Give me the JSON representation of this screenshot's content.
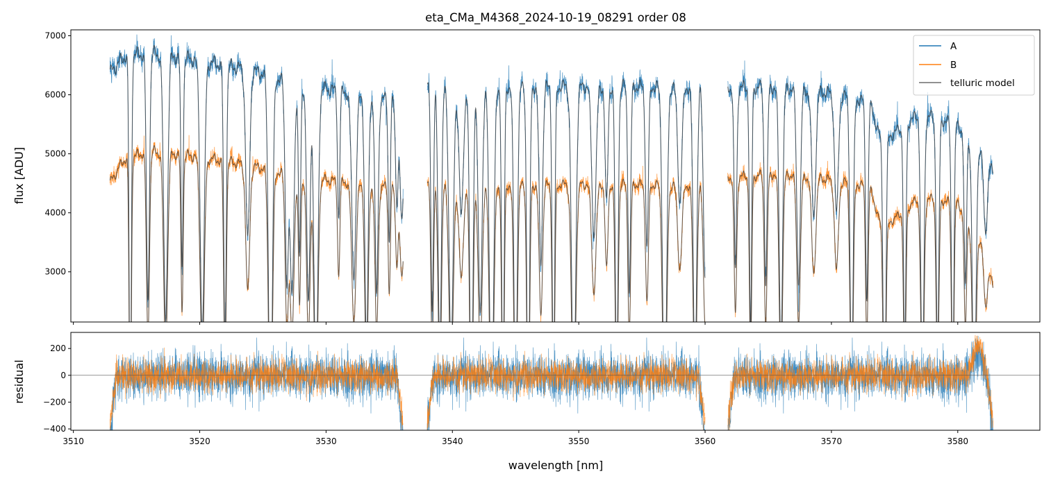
{
  "chart_data": [
    {
      "type": "line",
      "title": "eta_CMa_M4368_2024-10-19_08291  order 08",
      "xlabel": "",
      "ylabel": "flux [ADU]",
      "xlim": [
        3509.8,
        3586.5
      ],
      "ylim": [
        2150,
        7100
      ],
      "yticks": [
        "3000",
        "4000",
        "5000",
        "6000",
        "7000"
      ],
      "xticks_minor_only": [
        3510,
        3520,
        3530,
        3540,
        3550,
        3560,
        3570,
        3580
      ],
      "grid": false,
      "legend": {
        "placement": "top-right",
        "entries": [
          "A",
          "B",
          "telluric model"
        ]
      },
      "segments": [
        [
          3512.9,
          3536.1
        ],
        [
          3538.0,
          3560.0
        ],
        [
          3561.8,
          3582.8
        ]
      ],
      "series": [
        {
          "name": "A",
          "color": "#1f77b4",
          "continuum_anchors": [
            [
              3512.9,
              6500
            ],
            [
              3514,
              6780
            ],
            [
              3516,
              6850
            ],
            [
              3520,
              6720
            ],
            [
              3524,
              6550
            ],
            [
              3528,
              6300
            ],
            [
              3532,
              6150
            ],
            [
              3536.1,
              6000
            ],
            [
              3538,
              6280
            ],
            [
              3545,
              6260
            ],
            [
              3552,
              6270
            ],
            [
              3560,
              6250
            ],
            [
              3561.8,
              6250
            ],
            [
              3566,
              6250
            ],
            [
              3570,
              6150
            ],
            [
              3573,
              6000
            ],
            [
              3574,
              5300
            ],
            [
              3577,
              5800
            ],
            [
              3580,
              5600
            ],
            [
              3582,
              5100
            ],
            [
              3582.8,
              4800
            ]
          ]
        },
        {
          "name": "B",
          "color": "#ff7f0e",
          "continuum_anchors": [
            [
              3512.9,
              4600
            ],
            [
              3514,
              5000
            ],
            [
              3516,
              5150
            ],
            [
              3520,
              5050
            ],
            [
              3524,
              4900
            ],
            [
              3528,
              4700
            ],
            [
              3532,
              4600
            ],
            [
              3536.1,
              4500
            ],
            [
              3538,
              4580
            ],
            [
              3545,
              4560
            ],
            [
              3552,
              4580
            ],
            [
              3560,
              4550
            ],
            [
              3561.8,
              4700
            ],
            [
              3566,
              4750
            ],
            [
              3570,
              4650
            ],
            [
              3573,
              4550
            ],
            [
              3574,
              3800
            ],
            [
              3577,
              4350
            ],
            [
              3580,
              4250
            ],
            [
              3582,
              3500
            ],
            [
              3582.8,
              2800
            ]
          ]
        },
        {
          "name": "telluric model",
          "color": "#3c3c3c",
          "role": "model overlaid on A and B"
        }
      ],
      "absorption_lines": [
        3514.5,
        3515.9,
        3517.3,
        3518.6,
        3520.2,
        3522.0,
        3523.8,
        3525.6,
        3526.9,
        3527.3,
        3527.9,
        3528.6,
        3529.2,
        3531.0,
        3532.2,
        3533.2,
        3534.0,
        3535.0,
        3535.6,
        3536.0,
        3538.4,
        3539.0,
        3539.9,
        3540.7,
        3541.5,
        3542.2,
        3543.1,
        3544.0,
        3545.0,
        3546.0,
        3547.0,
        3548.0,
        3549.6,
        3551.2,
        3552.2,
        3553.0,
        3554.0,
        3555.4,
        3556.8,
        3558.0,
        3559.2,
        3560.0,
        3562.4,
        3563.6,
        3564.8,
        3566.0,
        3567.4,
        3568.6,
        3570.4,
        3571.6,
        3572.8,
        3574.2,
        3575.8,
        3577.2,
        3578.4,
        3579.6,
        3580.6,
        3581.3,
        3582.2
      ]
    },
    {
      "type": "line",
      "xlabel": "wavelength [nm]",
      "ylabel": "residual",
      "xlim": [
        3509.8,
        3586.5
      ],
      "ylim": [
        -410,
        320
      ],
      "xticks": [
        "3510",
        "3520",
        "3530",
        "3540",
        "3550",
        "3560",
        "3570",
        "3580"
      ],
      "yticks": [
        "−400",
        "−200",
        "0",
        "200"
      ],
      "grid": false,
      "zero_line": true,
      "series": [
        {
          "name": "A",
          "color": "#1f77b4",
          "approx_std": 140
        },
        {
          "name": "B",
          "color": "#ff7f0e",
          "approx_std": 95
        }
      ]
    }
  ]
}
